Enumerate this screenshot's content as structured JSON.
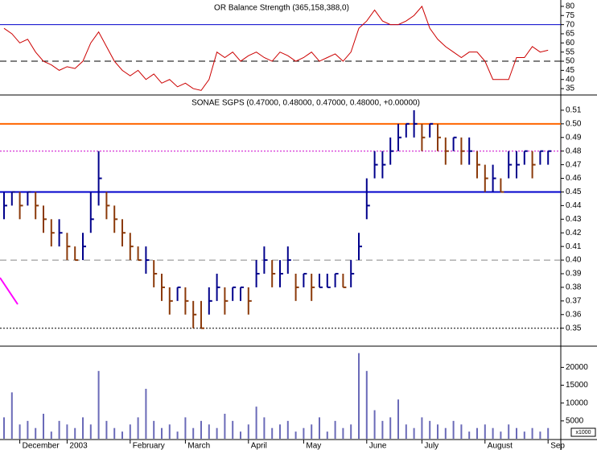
{
  "chart_data": [
    {
      "type": "line",
      "title": "OR Balance Strength (365,158,388,0)",
      "color": "#cc0000",
      "values": [
        68,
        65,
        60,
        62,
        55,
        50,
        48,
        45,
        47,
        46,
        50,
        60,
        66,
        58,
        50,
        45,
        42,
        45,
        40,
        43,
        38,
        40,
        36,
        38,
        35,
        34,
        40,
        55,
        52,
        55,
        50,
        53,
        55,
        52,
        50,
        55,
        53,
        50,
        52,
        55,
        50,
        52,
        54,
        50,
        55,
        68,
        72,
        78,
        72,
        70,
        70,
        72,
        75,
        80,
        68,
        62,
        58,
        55,
        52,
        55,
        55,
        50,
        40,
        40,
        40,
        52,
        52,
        58,
        55,
        56
      ],
      "ylim": [
        32.4,
        82.6
      ],
      "yticks": [
        35,
        40,
        45,
        50,
        55,
        60,
        65,
        70,
        75,
        80
      ],
      "hlines": [
        {
          "value": 70,
          "color": "#0000cc",
          "style": "solid",
          "width": 1
        },
        {
          "value": 50,
          "color": "#000000",
          "style": "dashed",
          "width": 1
        }
      ]
    },
    {
      "type": "ohlc",
      "title": "SONAE SGPS (0.47000, 0.48000, 0.47000, 0.48000, +0.00000)",
      "up_color": "#00008b",
      "down_color": "#8b3a0a",
      "high": [
        0.45,
        0.45,
        0.45,
        0.45,
        0.45,
        0.44,
        0.43,
        0.43,
        0.42,
        0.41,
        0.42,
        0.45,
        0.48,
        0.45,
        0.44,
        0.43,
        0.42,
        0.41,
        0.41,
        0.4,
        0.39,
        0.38,
        0.38,
        0.38,
        0.37,
        0.37,
        0.38,
        0.39,
        0.38,
        0.38,
        0.38,
        0.38,
        0.4,
        0.41,
        0.4,
        0.4,
        0.41,
        0.39,
        0.39,
        0.39,
        0.39,
        0.39,
        0.39,
        0.39,
        0.4,
        0.42,
        0.46,
        0.48,
        0.48,
        0.49,
        0.5,
        0.5,
        0.51,
        0.5,
        0.5,
        0.5,
        0.49,
        0.49,
        0.49,
        0.49,
        0.48,
        0.47,
        0.47,
        0.46,
        0.48,
        0.48,
        0.48,
        0.48,
        0.48,
        0.48
      ],
      "low": [
        0.43,
        0.44,
        0.43,
        0.44,
        0.43,
        0.42,
        0.41,
        0.41,
        0.4,
        0.4,
        0.4,
        0.42,
        0.44,
        0.43,
        0.42,
        0.41,
        0.4,
        0.4,
        0.39,
        0.38,
        0.37,
        0.36,
        0.37,
        0.36,
        0.35,
        0.35,
        0.36,
        0.37,
        0.36,
        0.37,
        0.37,
        0.36,
        0.38,
        0.39,
        0.38,
        0.38,
        0.39,
        0.37,
        0.38,
        0.37,
        0.38,
        0.38,
        0.38,
        0.38,
        0.38,
        0.4,
        0.43,
        0.46,
        0.46,
        0.47,
        0.48,
        0.49,
        0.49,
        0.48,
        0.49,
        0.48,
        0.47,
        0.48,
        0.47,
        0.47,
        0.46,
        0.45,
        0.45,
        0.45,
        0.46,
        0.46,
        0.47,
        0.46,
        0.47,
        0.47
      ],
      "close": [
        0.44,
        0.45,
        0.44,
        0.45,
        0.44,
        0.43,
        0.42,
        0.42,
        0.41,
        0.4,
        0.41,
        0.43,
        0.46,
        0.44,
        0.43,
        0.42,
        0.41,
        0.4,
        0.4,
        0.39,
        0.38,
        0.37,
        0.38,
        0.37,
        0.36,
        0.35,
        0.37,
        0.38,
        0.37,
        0.38,
        0.38,
        0.37,
        0.39,
        0.4,
        0.39,
        0.39,
        0.4,
        0.38,
        0.39,
        0.38,
        0.38,
        0.38,
        0.39,
        0.38,
        0.39,
        0.41,
        0.44,
        0.47,
        0.47,
        0.48,
        0.49,
        0.5,
        0.5,
        0.49,
        0.5,
        0.49,
        0.48,
        0.49,
        0.48,
        0.48,
        0.47,
        0.46,
        0.46,
        0.45,
        0.47,
        0.47,
        0.48,
        0.47,
        0.48,
        0.48
      ],
      "ylim": [
        0.338,
        0.52
      ],
      "yticks": [
        0.35,
        0.36,
        0.37,
        0.38,
        0.39,
        {
          "value": 0.4,
          "label": "0.40"
        },
        0.41,
        0.42,
        0.43,
        0.44,
        0.45,
        0.46,
        0.47,
        0.48,
        0.49,
        {
          "value": 0.5,
          "label": "0.50"
        },
        0.51
      ],
      "hlines": [
        {
          "value": 0.5,
          "color": "#ff6600",
          "style": "solid",
          "width": 2
        },
        {
          "value": 0.48,
          "color": "#cc00cc",
          "style": "dotted",
          "width": 1
        },
        {
          "value": 0.45,
          "color": "#0000cc",
          "style": "solid",
          "width": 2
        },
        {
          "value": 0.4,
          "color": "#888888",
          "style": "dashed",
          "width": 1
        },
        {
          "value": 0.35,
          "color": "#000000",
          "style": "dotted",
          "width": 1
        }
      ]
    },
    {
      "type": "bar",
      "color": "#6a6ab8",
      "unit_note": "x1000",
      "values": [
        6000,
        13000,
        4000,
        5000,
        3000,
        7000,
        2000,
        5000,
        4000,
        3000,
        6000,
        4000,
        19000,
        5000,
        3000,
        2000,
        4000,
        6000,
        14000,
        5000,
        3000,
        4000,
        2000,
        6000,
        3000,
        5000,
        4000,
        3000,
        7000,
        5000,
        2000,
        4000,
        9000,
        6000,
        3000,
        4000,
        5000,
        2000,
        3000,
        4000,
        6000,
        2000,
        5000,
        3000,
        4000,
        24000,
        19000,
        8000,
        5000,
        6000,
        11000,
        4000,
        3000,
        6000,
        5000,
        4000,
        3000,
        5000,
        4000,
        2000,
        3000,
        4000,
        3000,
        2000,
        4000,
        3000,
        2000,
        3000,
        2000,
        3000
      ],
      "ylim": [
        0,
        25500
      ],
      "yticks": [
        5000,
        10000,
        15000,
        20000
      ],
      "xticks": [
        {
          "value": 2,
          "label": "December"
        },
        {
          "value": 8,
          "label": "2003"
        },
        {
          "value": 16,
          "label": "February"
        },
        {
          "value": 23,
          "label": "March"
        },
        {
          "value": 31,
          "label": "April"
        },
        {
          "value": 38,
          "label": "May"
        },
        {
          "value": 46,
          "label": "June"
        },
        {
          "value": 53,
          "label": "July"
        },
        {
          "value": 61,
          "label": "August"
        },
        {
          "value": 69,
          "label": "Sep"
        }
      ]
    }
  ]
}
